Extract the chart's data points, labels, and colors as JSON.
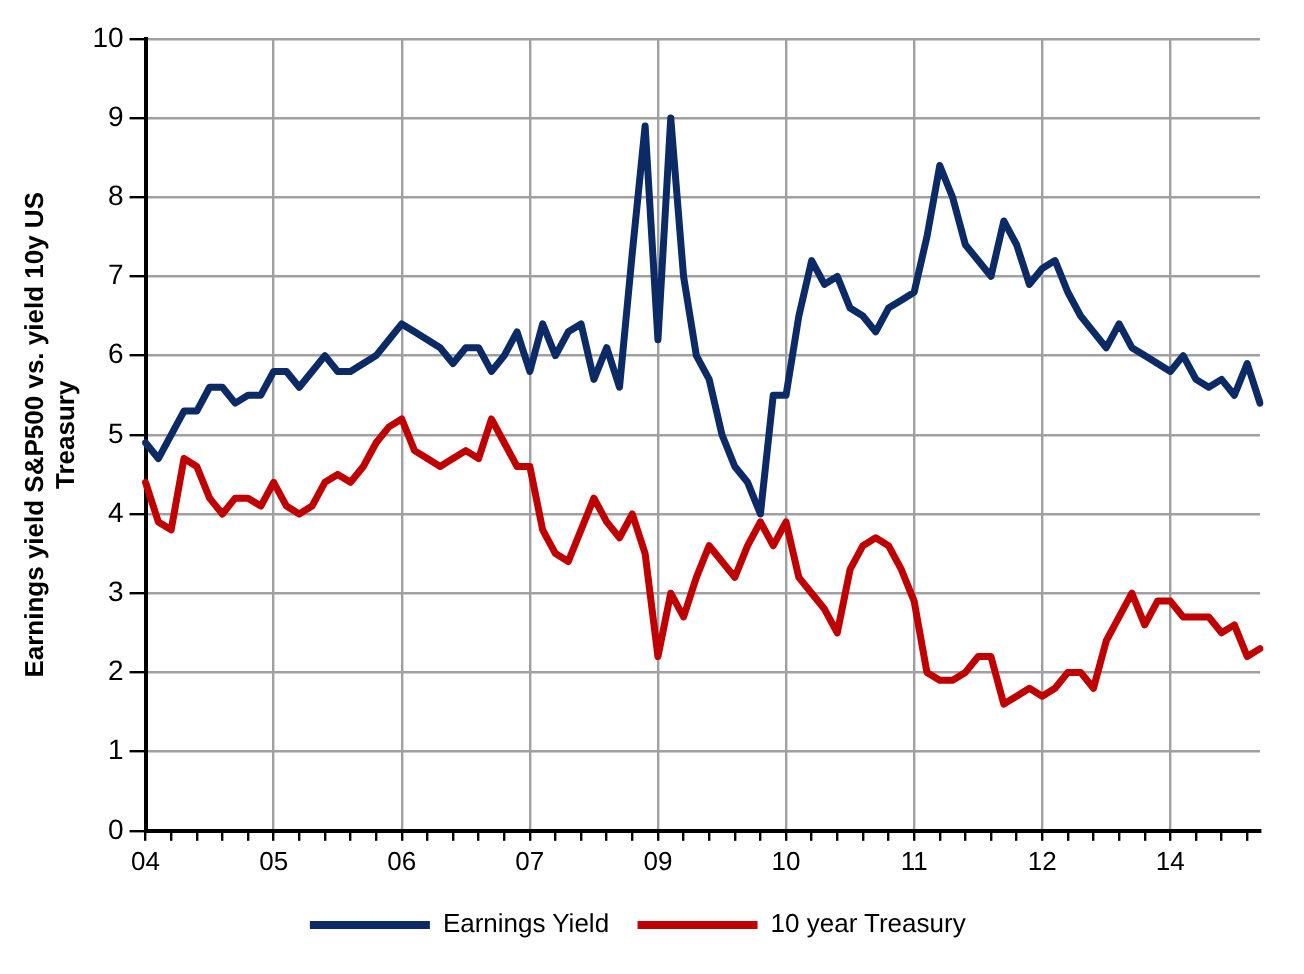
{
  "chart_data": {
    "type": "line",
    "ylabel": "Earnings yield S&P500 vs. yield 10y US Treasury",
    "categories": [
      "04",
      null,
      null,
      null,
      null,
      null,
      null,
      null,
      null,
      null,
      "05",
      null,
      null,
      null,
      null,
      null,
      null,
      null,
      null,
      null,
      "06",
      null,
      null,
      null,
      null,
      null,
      null,
      null,
      null,
      null,
      "07",
      null,
      null,
      null,
      null,
      null,
      null,
      null,
      null,
      null,
      "09",
      null,
      null,
      null,
      null,
      null,
      null,
      null,
      null,
      null,
      "10",
      null,
      null,
      null,
      null,
      null,
      null,
      null,
      null,
      null,
      "11",
      null,
      null,
      null,
      null,
      null,
      null,
      null,
      null,
      null,
      "12",
      null,
      null,
      null,
      null,
      null,
      null,
      null,
      null,
      null,
      "14",
      null,
      null,
      null,
      null,
      null,
      null,
      null
    ],
    "ylim": [
      0,
      10
    ],
    "yticks": [
      0,
      1,
      2,
      3,
      4,
      5,
      6,
      7,
      8,
      9,
      10
    ],
    "grid": true,
    "legend": "bottom",
    "marker": "none",
    "line_style": "solid",
    "series": [
      {
        "name": "Earnings Yield",
        "color": "#0b2a66",
        "values": [
          4.9,
          4.7,
          5.0,
          5.3,
          5.3,
          5.6,
          5.6,
          5.4,
          5.5,
          5.5,
          5.8,
          5.8,
          5.6,
          5.8,
          6.0,
          5.8,
          5.8,
          5.9,
          6.0,
          6.2,
          6.4,
          6.3,
          6.2,
          6.1,
          5.9,
          6.1,
          6.1,
          5.8,
          6.0,
          6.3,
          5.8,
          6.4,
          6.0,
          6.3,
          6.4,
          5.7,
          6.1,
          5.6,
          7.3,
          8.9,
          6.2,
          9.0,
          7.0,
          6.0,
          5.7,
          5.0,
          4.6,
          4.4,
          4.0,
          5.5,
          5.5,
          6.5,
          7.2,
          6.9,
          7.0,
          6.6,
          6.5,
          6.3,
          6.6,
          6.7,
          6.8,
          7.5,
          8.4,
          8.0,
          7.4,
          7.2,
          7.0,
          7.7,
          7.4,
          6.9,
          7.1,
          7.2,
          6.8,
          6.5,
          6.3,
          6.1,
          6.4,
          6.1,
          6.0,
          5.9,
          5.8,
          6.0,
          5.7,
          5.6,
          5.7,
          5.5,
          5.9,
          5.4
        ]
      },
      {
        "name": "10 year Treasury",
        "color": "#c00000",
        "values": [
          4.4,
          3.9,
          3.8,
          4.7,
          4.6,
          4.2,
          4.0,
          4.2,
          4.2,
          4.1,
          4.4,
          4.1,
          4.0,
          4.1,
          4.4,
          4.5,
          4.4,
          4.6,
          4.9,
          5.1,
          5.2,
          4.8,
          4.7,
          4.6,
          4.7,
          4.8,
          4.7,
          5.2,
          4.9,
          4.6,
          4.6,
          3.8,
          3.5,
          3.4,
          3.8,
          4.2,
          3.9,
          3.7,
          4.0,
          3.5,
          2.2,
          3.0,
          2.7,
          3.2,
          3.6,
          3.4,
          3.2,
          3.6,
          3.9,
          3.6,
          3.9,
          3.2,
          3.0,
          2.8,
          2.5,
          3.3,
          3.6,
          3.7,
          3.6,
          3.3,
          2.9,
          2.0,
          1.9,
          1.9,
          2.0,
          2.2,
          2.2,
          1.6,
          1.7,
          1.8,
          1.7,
          1.8,
          2.0,
          2.0,
          1.8,
          2.4,
          2.7,
          3.0,
          2.6,
          2.9,
          2.9,
          2.7,
          2.7,
          2.7,
          2.5,
          2.6,
          2.2,
          2.3
        ]
      }
    ]
  }
}
